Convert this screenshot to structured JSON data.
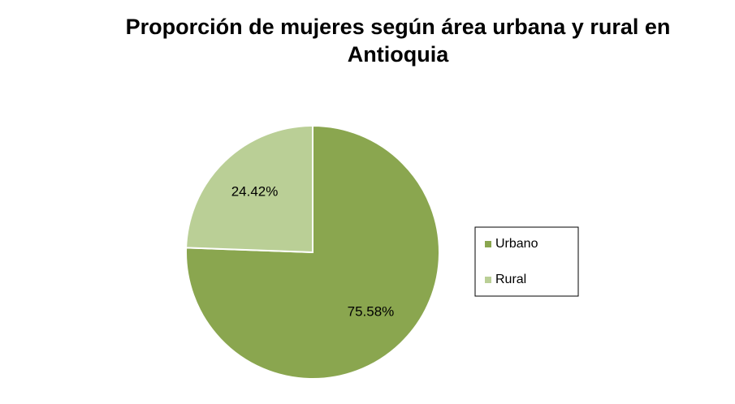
{
  "chart_data": {
    "type": "pie",
    "title": "Proporción de mujeres según área urbana y rural en Antioquia",
    "categories": [
      "Urbano",
      "Rural"
    ],
    "values": [
      75.58,
      24.42
    ],
    "value_labels": [
      "75.58%",
      "24.42%"
    ],
    "colors": [
      "#8aa64f",
      "#bacf96"
    ],
    "legend": "right"
  }
}
